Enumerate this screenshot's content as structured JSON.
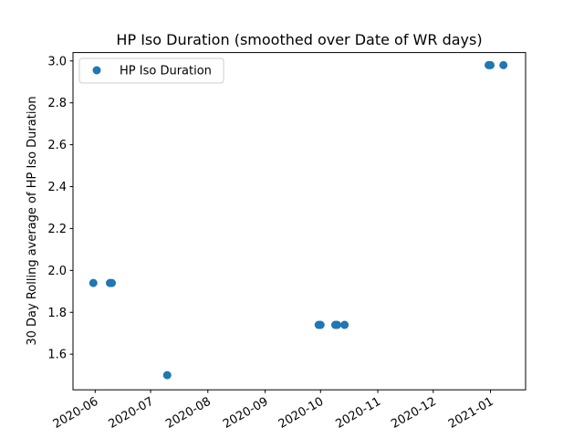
{
  "chart_data": {
    "type": "scatter",
    "title": "HP Iso Duration (smoothed over Date of WR days)",
    "xlabel": "",
    "ylabel": "30 Day Rolling average of HP Iso Duration",
    "x_axis_type": "date",
    "xlim": [
      "2020-05-20",
      "2021-01-20"
    ],
    "ylim": [
      1.43,
      3.04
    ],
    "x_ticks": [
      "2020-06-01",
      "2020-07-01",
      "2020-08-01",
      "2020-09-01",
      "2020-10-01",
      "2020-11-01",
      "2020-12-01",
      "2021-01-01"
    ],
    "x_tick_labels": [
      "2020-06",
      "2020-07",
      "2020-08",
      "2020-09",
      "2020-10",
      "2020-11",
      "2020-12",
      "2021-01"
    ],
    "y_ticks": [
      1.6,
      1.8,
      2.0,
      2.2,
      2.4,
      2.6,
      2.8,
      3.0
    ],
    "y_tick_labels": [
      "1.6",
      "1.8",
      "2.0",
      "2.2",
      "2.4",
      "2.6",
      "2.8",
      "3.0"
    ],
    "x_tick_rotation": 30,
    "grid": false,
    "legend": {
      "placement": "top-left"
    },
    "series": [
      {
        "name": "HP Iso Duration",
        "color": "#1f77b4",
        "marker": "circle",
        "points": [
          {
            "x": "2020-05-31",
            "y": 1.94
          },
          {
            "x": "2020-06-09",
            "y": 1.94
          },
          {
            "x": "2020-06-10",
            "y": 1.94
          },
          {
            "x": "2020-07-10",
            "y": 1.5
          },
          {
            "x": "2020-09-30",
            "y": 1.74
          },
          {
            "x": "2020-10-01",
            "y": 1.74
          },
          {
            "x": "2020-10-09",
            "y": 1.74
          },
          {
            "x": "2020-10-10",
            "y": 1.74
          },
          {
            "x": "2020-10-14",
            "y": 1.74
          },
          {
            "x": "2020-12-31",
            "y": 2.98
          },
          {
            "x": "2021-01-01",
            "y": 2.98
          },
          {
            "x": "2021-01-08",
            "y": 2.98
          }
        ]
      }
    ]
  }
}
